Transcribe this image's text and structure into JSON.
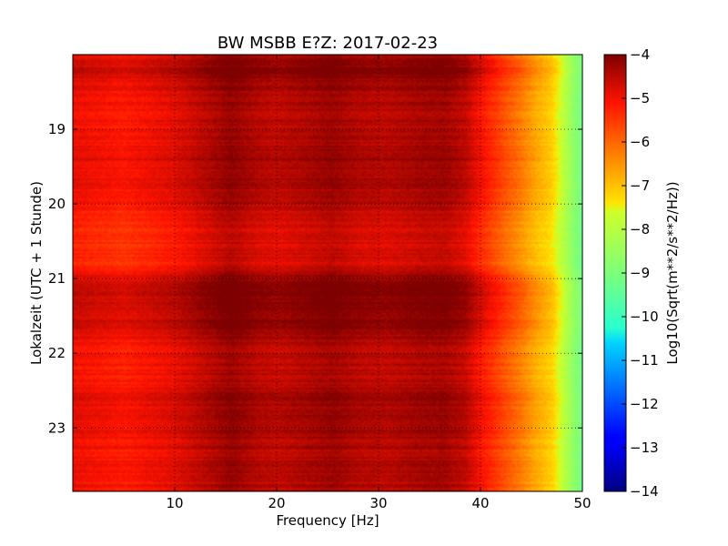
{
  "chart_data": {
    "type": "heatmap",
    "title": "BW MSBB E?Z: 2017-02-23",
    "xlabel": "Frequency [Hz]",
    "ylabel": "Lokalzeit (UTC + 1 Stunde)",
    "colorbar_label": "Log10(Sqrt(m**2/s**2/Hz))",
    "colormap": "jet",
    "xlim": [
      0,
      50
    ],
    "ylim_hours": [
      18.0,
      23.85
    ],
    "y_inverted": true,
    "x_ticks": [
      10,
      20,
      30,
      40,
      50
    ],
    "x_tick_labels": [
      "10",
      "20",
      "30",
      "40",
      "50"
    ],
    "y_ticks": [
      19,
      20,
      21,
      22,
      23
    ],
    "y_tick_labels": [
      "19",
      "20",
      "21",
      "22",
      "23"
    ],
    "colorbar_range": [
      -14,
      -4
    ],
    "colorbar_ticks": [
      -4,
      -5,
      -6,
      -7,
      -8,
      -9,
      -10,
      -11,
      -12,
      -13,
      -14
    ],
    "colorbar_tick_labels": [
      "−4",
      "−5",
      "−6",
      "−7",
      "−8",
      "−9",
      "−10",
      "−11",
      "−12",
      "−13",
      "−14"
    ],
    "grid": true,
    "frequency_profile": {
      "frequency_hz": [
        0,
        5,
        10,
        13,
        15.5,
        18,
        20,
        23,
        25.5,
        28,
        31,
        34,
        36.5,
        38.5,
        40,
        42,
        44,
        45.5,
        47,
        48,
        49,
        50
      ],
      "log10_amplitude": [
        -5.0,
        -5.2,
        -4.9,
        -4.55,
        -4.25,
        -4.5,
        -4.6,
        -4.45,
        -4.3,
        -4.5,
        -4.55,
        -4.4,
        -4.35,
        -4.6,
        -5.1,
        -5.7,
        -6.3,
        -6.8,
        -7.2,
        -7.8,
        -8.6,
        -9.2
      ]
    },
    "time_profile": {
      "hour": [
        18.0,
        18.2,
        18.4,
        18.6,
        19.0,
        19.4,
        19.8,
        20.0,
        20.3,
        20.6,
        20.9,
        21.0,
        21.3,
        21.6,
        22.0,
        22.4,
        22.6,
        23.0,
        23.4,
        23.85
      ],
      "log10_offset": [
        0.1,
        0.45,
        0.2,
        0.05,
        0.0,
        0.2,
        0.1,
        0.0,
        -0.3,
        -0.25,
        -0.2,
        0.4,
        0.45,
        0.35,
        0.0,
        -0.05,
        0.25,
        0.1,
        0.0,
        0.05
      ]
    }
  }
}
